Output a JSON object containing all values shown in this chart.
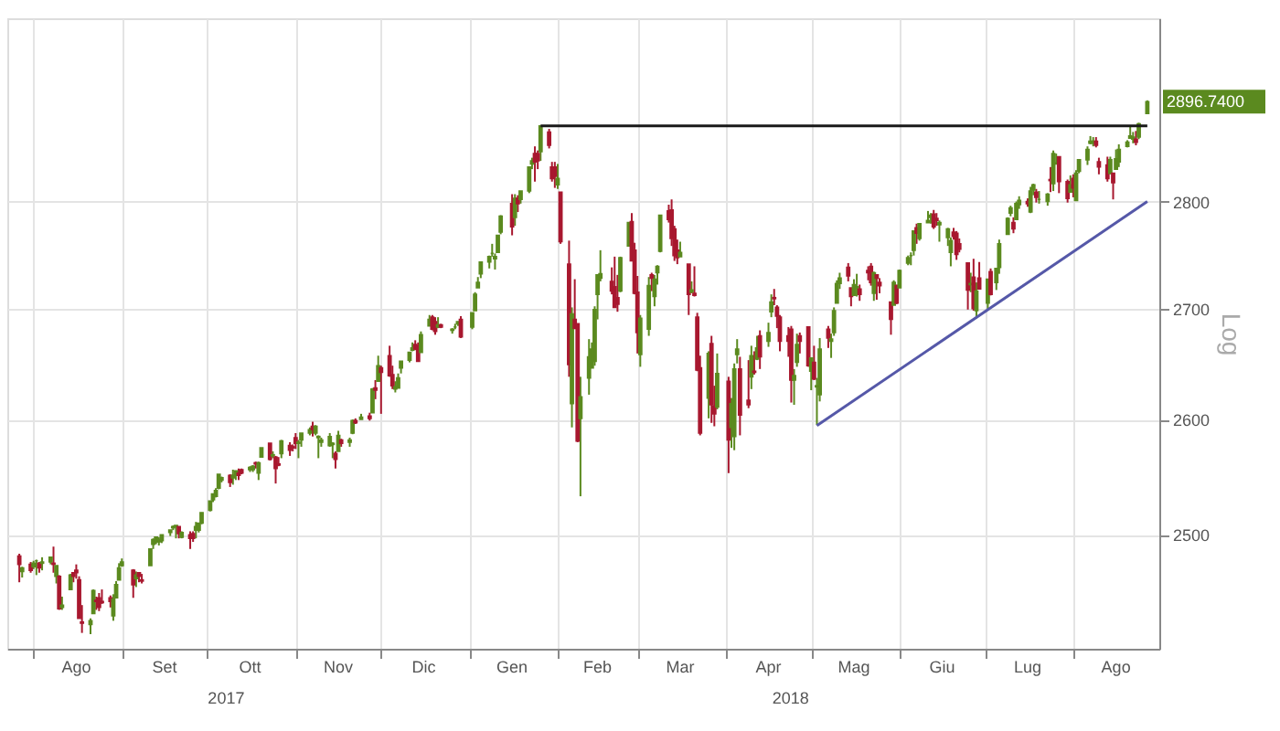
{
  "chart_data": {
    "type": "candlestick",
    "ylabel": "Log",
    "log": true,
    "grid": true,
    "ylim": [
      2405,
      2980
    ],
    "yticks": [
      2500,
      2600,
      2700,
      2800
    ],
    "xlim": [
      "2017-07-26",
      "2018-08-28"
    ],
    "xticks": [
      {
        "value": "2017-08-01",
        "label": null
      },
      {
        "value": "2017-08-16",
        "label": "Ago"
      },
      {
        "value": "2017-09-01",
        "label": null
      },
      {
        "value": "2017-09-16",
        "label": "Set"
      },
      {
        "value": "2017-10-01",
        "label": null
      },
      {
        "value": "2017-10-16",
        "label": "Ott"
      },
      {
        "value": "2017-11-01",
        "label": null
      },
      {
        "value": "2017-11-16",
        "label": "Nov"
      },
      {
        "value": "2017-12-01",
        "label": null
      },
      {
        "value": "2017-12-16",
        "label": "Dic"
      },
      {
        "value": "2018-01-01",
        "label": null
      },
      {
        "value": "2018-01-16",
        "label": "Gen"
      },
      {
        "value": "2018-02-01",
        "label": null
      },
      {
        "value": "2018-02-15",
        "label": "Feb"
      },
      {
        "value": "2018-03-01",
        "label": null
      },
      {
        "value": "2018-03-16",
        "label": "Mar"
      },
      {
        "value": "2018-04-01",
        "label": null
      },
      {
        "value": "2018-04-16",
        "label": "Apr"
      },
      {
        "value": "2018-05-01",
        "label": null
      },
      {
        "value": "2018-05-16",
        "label": "Mag"
      },
      {
        "value": "2018-06-01",
        "label": null
      },
      {
        "value": "2018-06-16",
        "label": "Giu"
      },
      {
        "value": "2018-07-01",
        "label": null
      },
      {
        "value": "2018-07-16",
        "label": "Lug"
      },
      {
        "value": "2018-08-01",
        "label": null
      },
      {
        "value": "2018-08-16",
        "label": "Ago"
      }
    ],
    "annotations": [
      "2017",
      "2018",
      "2896.7400"
    ],
    "series": [
      {
        "type": "line",
        "color": "#1a1a1a",
        "x": [
          "2018-01-26",
          "2018-08-27"
        ],
        "values": [
          2872.87,
          2872.87
        ]
      },
      {
        "type": "line",
        "color": "#5558a8",
        "x": [
          "2018-05-03",
          "2018-08-27"
        ],
        "values": [
          2594.62,
          2800
        ]
      }
    ],
    "x": [
      "2017-07-27",
      "2017-07-28",
      "2017-07-31",
      "2017-08-01",
      "2017-08-02",
      "2017-08-03",
      "2017-08-04",
      "2017-08-07",
      "2017-08-08",
      "2017-08-09",
      "2017-08-10",
      "2017-08-11",
      "2017-08-14",
      "2017-08-15",
      "2017-08-16",
      "2017-08-17",
      "2017-08-18",
      "2017-08-21",
      "2017-08-22",
      "2017-08-23",
      "2017-08-24",
      "2017-08-25",
      "2017-08-28",
      "2017-08-29",
      "2017-08-30",
      "2017-08-31",
      "2017-09-01",
      "2017-09-05",
      "2017-09-06",
      "2017-09-07",
      "2017-09-08",
      "2017-09-11",
      "2017-09-12",
      "2017-09-13",
      "2017-09-14",
      "2017-09-15",
      "2017-09-18",
      "2017-09-19",
      "2017-09-20",
      "2017-09-21",
      "2017-09-22",
      "2017-09-25",
      "2017-09-26",
      "2017-09-27",
      "2017-09-28",
      "2017-09-29",
      "2017-10-02",
      "2017-10-03",
      "2017-10-04",
      "2017-10-05",
      "2017-10-06",
      "2017-10-09",
      "2017-10-10",
      "2017-10-11",
      "2017-10-12",
      "2017-10-13",
      "2017-10-16",
      "2017-10-17",
      "2017-10-18",
      "2017-10-19",
      "2017-10-20",
      "2017-10-23",
      "2017-10-24",
      "2017-10-25",
      "2017-10-26",
      "2017-10-27",
      "2017-10-30",
      "2017-10-31",
      "2017-11-01",
      "2017-11-02",
      "2017-11-03",
      "2017-11-06",
      "2017-11-07",
      "2017-11-08",
      "2017-11-09",
      "2017-11-10",
      "2017-11-13",
      "2017-11-14",
      "2017-11-15",
      "2017-11-16",
      "2017-11-17",
      "2017-11-20",
      "2017-11-21",
      "2017-11-22",
      "2017-11-24",
      "2017-11-27",
      "2017-11-28",
      "2017-11-29",
      "2017-11-30",
      "2017-12-01",
      "2017-12-04",
      "2017-12-05",
      "2017-12-06",
      "2017-12-07",
      "2017-12-08",
      "2017-12-11",
      "2017-12-12",
      "2017-12-13",
      "2017-12-14",
      "2017-12-15",
      "2017-12-18",
      "2017-12-19",
      "2017-12-20",
      "2017-12-21",
      "2017-12-22",
      "2017-12-26",
      "2017-12-27",
      "2017-12-28",
      "2017-12-29",
      "2018-01-02",
      "2018-01-03",
      "2018-01-04",
      "2018-01-05",
      "2018-01-08",
      "2018-01-09",
      "2018-01-10",
      "2018-01-11",
      "2018-01-12",
      "2018-01-16",
      "2018-01-17",
      "2018-01-18",
      "2018-01-19",
      "2018-01-22",
      "2018-01-23",
      "2018-01-24",
      "2018-01-25",
      "2018-01-26",
      "2018-01-29",
      "2018-01-30",
      "2018-01-31",
      "2018-02-01",
      "2018-02-02",
      "2018-02-05",
      "2018-02-06",
      "2018-02-07",
      "2018-02-08",
      "2018-02-09",
      "2018-02-12",
      "2018-02-13",
      "2018-02-14",
      "2018-02-15",
      "2018-02-16",
      "2018-02-20",
      "2018-02-21",
      "2018-02-22",
      "2018-02-23",
      "2018-02-26",
      "2018-02-27",
      "2018-02-28",
      "2018-03-01",
      "2018-03-02",
      "2018-03-05",
      "2018-03-06",
      "2018-03-07",
      "2018-03-08",
      "2018-03-09",
      "2018-03-12",
      "2018-03-13",
      "2018-03-14",
      "2018-03-15",
      "2018-03-16",
      "2018-03-19",
      "2018-03-20",
      "2018-03-21",
      "2018-03-22",
      "2018-03-23",
      "2018-03-26",
      "2018-03-27",
      "2018-03-28",
      "2018-03-29",
      "2018-04-02",
      "2018-04-03",
      "2018-04-04",
      "2018-04-05",
      "2018-04-06",
      "2018-04-09",
      "2018-04-10",
      "2018-04-11",
      "2018-04-12",
      "2018-04-13",
      "2018-04-16",
      "2018-04-17",
      "2018-04-18",
      "2018-04-19",
      "2018-04-20",
      "2018-04-23",
      "2018-04-24",
      "2018-04-25",
      "2018-04-26",
      "2018-04-27",
      "2018-04-30",
      "2018-05-01",
      "2018-05-02",
      "2018-05-03",
      "2018-05-04",
      "2018-05-07",
      "2018-05-08",
      "2018-05-09",
      "2018-05-10",
      "2018-05-11",
      "2018-05-14",
      "2018-05-15",
      "2018-05-16",
      "2018-05-17",
      "2018-05-18",
      "2018-05-21",
      "2018-05-22",
      "2018-05-23",
      "2018-05-24",
      "2018-05-25",
      "2018-05-29",
      "2018-05-30",
      "2018-05-31",
      "2018-06-01",
      "2018-06-04",
      "2018-06-05",
      "2018-06-06",
      "2018-06-07",
      "2018-06-08",
      "2018-06-11",
      "2018-06-12",
      "2018-06-13",
      "2018-06-14",
      "2018-06-15",
      "2018-06-18",
      "2018-06-19",
      "2018-06-20",
      "2018-06-21",
      "2018-06-22",
      "2018-06-25",
      "2018-06-26",
      "2018-06-27",
      "2018-06-28",
      "2018-06-29",
      "2018-07-02",
      "2018-07-03",
      "2018-07-05",
      "2018-07-06",
      "2018-07-09",
      "2018-07-10",
      "2018-07-11",
      "2018-07-12",
      "2018-07-13",
      "2018-07-16",
      "2018-07-17",
      "2018-07-18",
      "2018-07-19",
      "2018-07-20",
      "2018-07-23",
      "2018-07-24",
      "2018-07-25",
      "2018-07-26",
      "2018-07-27",
      "2018-07-30",
      "2018-07-31",
      "2018-08-01",
      "2018-08-02",
      "2018-08-03",
      "2018-08-06",
      "2018-08-07",
      "2018-08-08",
      "2018-08-09",
      "2018-08-10",
      "2018-08-13",
      "2018-08-14",
      "2018-08-15",
      "2018-08-16",
      "2018-08-17",
      "2018-08-20",
      "2018-08-21",
      "2018-08-22",
      "2018-08-23",
      "2018-08-24",
      "2018-08-27"
    ],
    "ohlc": [
      [
        2482,
        2484,
        2460,
        2475
      ],
      [
        2469,
        2473,
        2464,
        2472
      ],
      [
        2475,
        2477,
        2468,
        2470
      ],
      [
        2473,
        2478,
        2471,
        2476
      ],
      [
        2478,
        2479,
        2466,
        2478
      ],
      [
        2476,
        2477,
        2468,
        2472
      ],
      [
        2476,
        2481,
        2470,
        2477
      ],
      [
        2477,
        2481,
        2475,
        2481
      ],
      [
        2476,
        2490,
        2468,
        2475
      ],
      [
        2465,
        2474,
        2459,
        2474
      ],
      [
        2465,
        2466,
        2437,
        2438
      ],
      [
        2439,
        2448,
        2437,
        2441
      ],
      [
        2454,
        2467,
        2454,
        2466
      ],
      [
        2468,
        2468,
        2460,
        2465
      ],
      [
        2470,
        2475,
        2463,
        2468
      ],
      [
        2462,
        2465,
        2430,
        2430
      ],
      [
        2427,
        2441,
        2418,
        2426
      ],
      [
        2425,
        2430,
        2417,
        2428
      ],
      [
        2434,
        2454,
        2434,
        2453
      ],
      [
        2445,
        2448,
        2437,
        2444
      ],
      [
        2447,
        2451,
        2436,
        2439
      ],
      [
        2444,
        2454,
        2442,
        2443
      ],
      [
        2447,
        2449,
        2439,
        2444
      ],
      [
        2432,
        2450,
        2428,
        2446
      ],
      [
        2447,
        2461,
        2447,
        2458
      ],
      [
        2462,
        2476,
        2462,
        2472
      ],
      [
        2474,
        2480,
        2473,
        2477
      ],
      [
        2470,
        2471,
        2447,
        2458
      ],
      [
        2463,
        2469,
        2456,
        2466
      ],
      [
        2468,
        2468,
        2460,
        2465
      ],
      [
        2462,
        2467,
        2459,
        2461
      ],
      [
        2474,
        2488,
        2474,
        2488
      ],
      [
        2492,
        2497,
        2488,
        2496
      ],
      [
        2494,
        2498,
        2492,
        2498
      ],
      [
        2494,
        2498,
        2491,
        2496
      ],
      [
        2495,
        2500,
        2493,
        2500
      ],
      [
        2502,
        2504,
        2499,
        2504
      ],
      [
        2506,
        2508,
        2504,
        2507
      ],
      [
        2507,
        2508,
        2497,
        2508
      ],
      [
        2507,
        2507,
        2497,
        2501
      ],
      [
        2498,
        2503,
        2497,
        2502
      ],
      [
        2500,
        2503,
        2488,
        2497
      ],
      [
        2501,
        2503,
        2494,
        2497
      ],
      [
        2504,
        2511,
        2497,
        2507
      ],
      [
        2504,
        2510,
        2502,
        2510
      ],
      [
        2510,
        2519,
        2509,
        2519
      ],
      [
        2521,
        2529,
        2520,
        2529
      ],
      [
        2530,
        2535,
        2528,
        2535
      ],
      [
        2533,
        2540,
        2532,
        2538
      ],
      [
        2540,
        2552,
        2539,
        2552
      ],
      [
        2547,
        2550,
        2545,
        2549
      ],
      [
        2551,
        2552,
        2541,
        2545
      ],
      [
        2549,
        2556,
        2543,
        2551
      ],
      [
        2551,
        2555,
        2547,
        2555
      ],
      [
        2553,
        2557,
        2547,
        2551
      ],
      [
        2556,
        2557,
        2552,
        2553
      ],
      [
        2556,
        2559,
        2554,
        2558
      ],
      [
        2556,
        2560,
        2554,
        2559
      ],
      [
        2562,
        2563,
        2557,
        2561
      ],
      [
        2553,
        2563,
        2547,
        2562
      ],
      [
        2567,
        2575,
        2567,
        2575
      ],
      [
        2579,
        2579,
        2564,
        2565
      ],
      [
        2568,
        2572,
        2566,
        2569
      ],
      [
        2567,
        2568,
        2544,
        2557
      ],
      [
        2561,
        2567,
        2559,
        2560
      ],
      [
        2570,
        2582,
        2566,
        2581
      ],
      [
        2577,
        2580,
        2568,
        2573
      ],
      [
        2576,
        2578,
        2572,
        2575
      ],
      [
        2584,
        2588,
        2574,
        2579
      ],
      [
        2579,
        2582,
        2566,
        2580
      ],
      [
        2582,
        2588,
        2576,
        2588
      ],
      [
        2588,
        2593,
        2586,
        2591
      ],
      [
        2594,
        2598,
        2585,
        2591
      ],
      [
        2588,
        2595,
        2586,
        2594
      ],
      [
        2584,
        2586,
        2566,
        2585
      ],
      [
        2580,
        2584,
        2576,
        2582
      ],
      [
        2577,
        2588,
        2576,
        2585
      ],
      [
        2578,
        2580,
        2566,
        2579
      ],
      [
        2570,
        2572,
        2557,
        2565
      ],
      [
        2572,
        2590,
        2572,
        2586
      ],
      [
        2582,
        2583,
        2576,
        2579
      ],
      [
        2580,
        2584,
        2576,
        2582
      ],
      [
        2588,
        2600,
        2587,
        2599
      ],
      [
        2599,
        2601,
        2596,
        2597
      ],
      [
        2600,
        2605,
        2600,
        2602
      ],
      [
        2603,
        2606,
        2599,
        2601
      ],
      [
        2606,
        2628,
        2606,
        2627
      ],
      [
        2628,
        2635,
        2618,
        2626
      ],
      [
        2634,
        2657,
        2634,
        2648
      ],
      [
        2646,
        2648,
        2605,
        2642
      ],
      [
        2657,
        2666,
        2638,
        2639
      ],
      [
        2640,
        2648,
        2627,
        2630
      ],
      [
        2627,
        2634,
        2624,
        2629
      ],
      [
        2628,
        2641,
        2628,
        2637
      ],
      [
        2646,
        2652,
        2641,
        2652
      ],
      [
        2653,
        2660,
        2651,
        2660
      ],
      [
        2662,
        2669,
        2661,
        2664
      ],
      [
        2667,
        2671,
        2662,
        2663
      ],
      [
        2666,
        2669,
        2652,
        2652
      ],
      [
        2660,
        2679,
        2660,
        2676
      ],
      [
        2684,
        2694,
        2684,
        2690
      ],
      [
        2692,
        2694,
        2680,
        2681
      ],
      [
        2688,
        2692,
        2676,
        2679
      ],
      [
        2683,
        2692,
        2682,
        2685
      ],
      [
        2685,
        2686,
        2682,
        2683
      ],
      [
        2680,
        2682,
        2677,
        2681
      ],
      [
        2683,
        2686,
        2681,
        2683
      ],
      [
        2686,
        2688,
        2684,
        2688
      ],
      [
        2690,
        2693,
        2673,
        2674
      ],
      [
        2683,
        2696,
        2681,
        2696
      ],
      [
        2698,
        2715,
        2698,
        2713
      ],
      [
        2719,
        2729,
        2719,
        2724
      ],
      [
        2732,
        2743,
        2728,
        2743
      ],
      [
        2743,
        2749,
        2737,
        2748
      ],
      [
        2751,
        2760,
        2748,
        2751
      ],
      [
        2746,
        2751,
        2736,
        2748
      ],
      [
        2752,
        2768,
        2752,
        2768
      ],
      [
        2771,
        2787,
        2769,
        2786
      ],
      [
        2798,
        2807,
        2768,
        2776
      ],
      [
        2785,
        2807,
        2777,
        2803
      ],
      [
        2803,
        2806,
        2790,
        2798
      ],
      [
        2802,
        2810,
        2798,
        2810
      ],
      [
        2810,
        2833,
        2808,
        2833
      ],
      [
        2836,
        2842,
        2831,
        2839
      ],
      [
        2846,
        2853,
        2819,
        2838
      ],
      [
        2846,
        2849,
        2831,
        2839
      ],
      [
        2848,
        2873,
        2839,
        2873
      ],
      [
        2867,
        2870,
        2851,
        2854
      ],
      [
        2833,
        2838,
        2819,
        2822
      ],
      [
        2833,
        2838,
        2813,
        2824
      ],
      [
        2816,
        2836,
        2812,
        2822
      ],
      [
        2809,
        2809,
        2760,
        2762
      ],
      [
        2741,
        2763,
        2638,
        2649
      ],
      [
        2614,
        2701,
        2593,
        2695
      ],
      [
        2690,
        2727,
        2681,
        2682
      ],
      [
        2686,
        2686,
        2580,
        2581
      ],
      [
        2601,
        2638,
        2533,
        2620
      ],
      [
        2637,
        2672,
        2622,
        2656
      ],
      [
        2646,
        2669,
        2646,
        2663
      ],
      [
        2652,
        2702,
        2648,
        2699
      ],
      [
        2713,
        2731,
        2690,
        2731
      ],
      [
        2728,
        2754,
        2725,
        2732
      ],
      [
        2725,
        2738,
        2713,
        2716
      ],
      [
        2720,
        2748,
        2701,
        2701
      ],
      [
        2710,
        2731,
        2697,
        2704
      ],
      [
        2716,
        2748,
        2715,
        2747
      ],
      [
        2758,
        2780,
        2758,
        2780
      ],
      [
        2781,
        2789,
        2744,
        2744
      ],
      [
        2754,
        2761,
        2713,
        2714
      ],
      [
        2715,
        2730,
        2659,
        2678
      ],
      [
        2658,
        2694,
        2647,
        2691
      ],
      [
        2681,
        2729,
        2675,
        2721
      ],
      [
        2731,
        2733,
        2716,
        2728
      ],
      [
        2711,
        2731,
        2702,
        2727
      ],
      [
        2733,
        2740,
        2722,
        2739
      ],
      [
        2753,
        2787,
        2752,
        2787
      ],
      [
        2791,
        2797,
        2780,
        2783
      ],
      [
        2792,
        2802,
        2758,
        2765
      ],
      [
        2774,
        2777,
        2744,
        2749
      ],
      [
        2754,
        2764,
        2741,
        2747
      ],
      [
        2748,
        2762,
        2748,
        2752
      ],
      [
        2741,
        2741,
        2694,
        2713
      ],
      [
        2715,
        2725,
        2714,
        2717
      ],
      [
        2714,
        2739,
        2711,
        2712
      ],
      [
        2692,
        2696,
        2643,
        2644
      ],
      [
        2646,
        2657,
        2586,
        2588
      ],
      [
        2619,
        2661,
        2601,
        2659
      ],
      [
        2668,
        2675,
        2597,
        2613
      ],
      [
        2612,
        2630,
        2594,
        2605
      ],
      [
        2611,
        2659,
        2609,
        2641
      ],
      [
        2634,
        2638,
        2553,
        2582
      ],
      [
        2593,
        2619,
        2575,
        2614
      ],
      [
        2585,
        2650,
        2573,
        2645
      ],
      [
        2658,
        2672,
        2650,
        2663
      ],
      [
        2645,
        2656,
        2586,
        2604
      ],
      [
        2617,
        2653,
        2610,
        2613
      ],
      [
        2638,
        2666,
        2627,
        2657
      ],
      [
        2643,
        2661,
        2640,
        2642
      ],
      [
        2654,
        2675,
        2653,
        2664
      ],
      [
        2675,
        2680,
        2645,
        2656
      ],
      [
        2670,
        2687,
        2665,
        2678
      ],
      [
        2697,
        2713,
        2692,
        2706
      ],
      [
        2710,
        2718,
        2703,
        2709
      ],
      [
        2701,
        2703,
        2682,
        2693
      ],
      [
        2692,
        2694,
        2661,
        2670
      ],
      [
        2675,
        2683,
        2656,
        2670
      ],
      [
        2681,
        2684,
        2615,
        2635
      ],
      [
        2635,
        2645,
        2613,
        2639
      ],
      [
        2651,
        2677,
        2647,
        2667
      ],
      [
        2675,
        2678,
        2659,
        2670
      ],
      [
        2683,
        2683,
        2647,
        2648
      ],
      [
        2643,
        2655,
        2626,
        2655
      ],
      [
        2651,
        2666,
        2635,
        2636
      ],
      [
        2629,
        2637,
        2595,
        2630
      ],
      [
        2622,
        2673,
        2616,
        2663
      ],
      [
        2681,
        2684,
        2664,
        2673
      ],
      [
        2670,
        2677,
        2655,
        2672
      ],
      [
        2678,
        2701,
        2675,
        2698
      ],
      [
        2705,
        2726,
        2705,
        2723
      ],
      [
        2723,
        2733,
        2718,
        2728
      ],
      [
        2738,
        2742,
        2725,
        2730
      ],
      [
        2719,
        2719,
        2702,
        2711
      ],
      [
        2712,
        2727,
        2712,
        2722
      ],
      [
        2719,
        2732,
        2711,
        2720
      ],
      [
        2718,
        2722,
        2707,
        2713
      ],
      [
        2735,
        2739,
        2726,
        2733
      ],
      [
        2739,
        2742,
        2721,
        2724
      ],
      [
        2714,
        2734,
        2707,
        2733
      ],
      [
        2731,
        2731,
        2708,
        2728
      ],
      [
        2724,
        2728,
        2714,
        2721
      ],
      [
        2706,
        2706,
        2676,
        2690
      ],
      [
        2703,
        2726,
        2703,
        2724
      ],
      [
        2721,
        2722,
        2704,
        2705
      ],
      [
        2719,
        2736,
        2719,
        2735
      ],
      [
        2742,
        2749,
        2740,
        2747
      ],
      [
        2749,
        2752,
        2740,
        2749
      ],
      [
        2754,
        2772,
        2749,
        2772
      ],
      [
        2775,
        2779,
        2760,
        2770
      ],
      [
        2765,
        2779,
        2763,
        2779
      ],
      [
        2780,
        2791,
        2780,
        2782
      ],
      [
        2785,
        2789,
        2779,
        2787
      ],
      [
        2788,
        2792,
        2774,
        2776
      ],
      [
        2784,
        2789,
        2777,
        2782
      ],
      [
        2778,
        2782,
        2762,
        2780
      ],
      [
        2766,
        2775,
        2758,
        2774
      ],
      [
        2752,
        2766,
        2739,
        2763
      ],
      [
        2771,
        2775,
        2764,
        2767
      ],
      [
        2770,
        2772,
        2745,
        2750
      ],
      [
        2760,
        2765,
        2752,
        2755
      ],
      [
        2742,
        2742,
        2699,
        2717
      ],
      [
        2722,
        2733,
        2715,
        2723
      ],
      [
        2729,
        2746,
        2698,
        2700
      ],
      [
        2698,
        2724,
        2691,
        2716
      ],
      [
        2728,
        2743,
        2718,
        2718
      ],
      [
        2705,
        2727,
        2699,
        2727
      ],
      [
        2734,
        2737,
        2712,
        2713
      ],
      [
        2724,
        2737,
        2717,
        2737
      ],
      [
        2738,
        2764,
        2732,
        2760
      ],
      [
        2769,
        2785,
        2769,
        2784
      ],
      [
        2789,
        2796,
        2786,
        2794
      ],
      [
        2780,
        2785,
        2770,
        2774
      ],
      [
        2783,
        2800,
        2783,
        2798
      ],
      [
        2797,
        2805,
        2793,
        2801
      ],
      [
        2800,
        2803,
        2795,
        2798
      ],
      [
        2790,
        2814,
        2789,
        2810
      ],
      [
        2811,
        2817,
        2806,
        2816
      ],
      [
        2809,
        2812,
        2799,
        2804
      ],
      [
        2802,
        2810,
        2798,
        2802
      ],
      [
        2800,
        2808,
        2796,
        2807
      ],
      [
        2821,
        2833,
        2809,
        2820
      ],
      [
        2817,
        2849,
        2810,
        2846
      ],
      [
        2836,
        2846,
        2836,
        2837
      ],
      [
        2843,
        2843,
        2808,
        2819
      ],
      [
        2819,
        2821,
        2799,
        2803
      ],
      [
        2809,
        2825,
        2809,
        2816
      ],
      [
        2822,
        2826,
        2804,
        2813
      ],
      [
        2801,
        2830,
        2801,
        2827
      ],
      [
        2829,
        2840,
        2827,
        2840
      ],
      [
        2840,
        2853,
        2835,
        2850
      ],
      [
        2856,
        2863,
        2855,
        2858
      ],
      [
        2856,
        2862,
        2853,
        2858
      ],
      [
        2858,
        2862,
        2852,
        2854
      ],
      [
        2838,
        2842,
        2826,
        2833
      ],
      [
        2835,
        2843,
        2819,
        2822
      ],
      [
        2827,
        2843,
        2826,
        2840
      ],
      [
        2827,
        2827,
        2802,
        2818
      ],
      [
        2831,
        2850,
        2831,
        2841
      ],
      [
        2838,
        2855,
        2833,
        2850
      ],
      [
        2853,
        2859,
        2852,
        2857
      ],
      [
        2861,
        2873,
        2861,
        2863
      ],
      [
        2860,
        2867,
        2856,
        2862
      ],
      [
        2860,
        2868,
        2854,
        2857
      ],
      [
        2862,
        2876,
        2860,
        2875
      ],
      [
        2885,
        2898,
        2885,
        2896.74
      ]
    ]
  }
}
